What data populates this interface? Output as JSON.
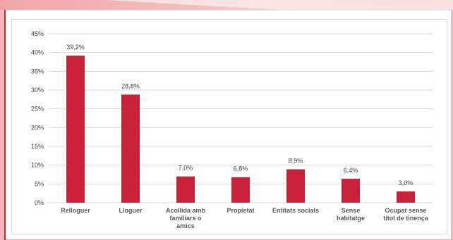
{
  "colors": {
    "bar": "#c9213a",
    "gridline": "#d9d9d9",
    "page_background": "#f3b8b8",
    "accent_rule": "#c9253a"
  },
  "chart_data": {
    "type": "bar",
    "title": "",
    "xlabel": "",
    "ylabel": "",
    "ylim": [
      0,
      45
    ],
    "yticks": [
      0,
      5,
      10,
      15,
      20,
      25,
      30,
      35,
      40,
      45
    ],
    "ytick_labels": [
      "0%",
      "5%",
      "10%",
      "15%",
      "20%",
      "25%",
      "30%",
      "35%",
      "40%",
      "45%"
    ],
    "grid": "horizontal",
    "legend": "none",
    "categories": [
      [
        "Relloguer"
      ],
      [
        "Lloguer"
      ],
      [
        "Acollida amb",
        "familiars o",
        "amics"
      ],
      [
        "Propietat"
      ],
      [
        "Entitats socials"
      ],
      [
        "Sense",
        "habitatge"
      ],
      [
        "Ocupat sense",
        "títol de tinença"
      ]
    ],
    "values": [
      39.2,
      28.8,
      7.0,
      6.8,
      8.9,
      6.4,
      3.0
    ],
    "data_labels": [
      "39,2%",
      "28,8%",
      "7,0%",
      "6,8%",
      "8,9%",
      "6,4%",
      "3,0%"
    ]
  }
}
